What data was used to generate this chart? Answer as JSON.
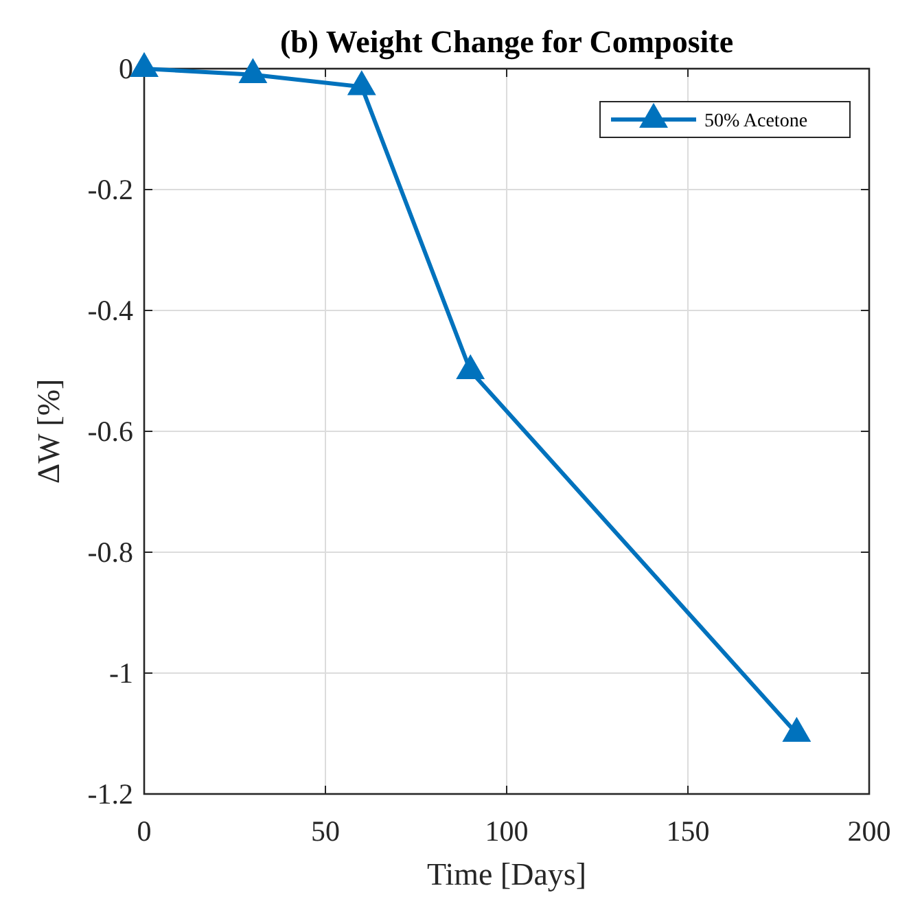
{
  "chart_data": {
    "type": "line",
    "title": "(b) Weight Change for Composite",
    "xlabel": "Time [Days]",
    "ylabel": "ΔW [%]",
    "x": [
      0,
      30,
      60,
      90,
      180
    ],
    "series": [
      {
        "name": "50% Acetone",
        "color": "#0072bd",
        "values": [
          0,
          -0.01,
          -0.03,
          -0.5,
          -1.1
        ]
      }
    ],
    "xlim": [
      0,
      200
    ],
    "xticks": [
      0,
      50,
      100,
      150,
      200
    ],
    "ylim": [
      -1.2,
      0
    ],
    "yticks": [
      -1.2,
      -1,
      -0.8,
      -0.6,
      -0.4,
      -0.2,
      0
    ],
    "grid": true,
    "legend": "top right",
    "marker": "triangle",
    "line_style": "solid"
  }
}
